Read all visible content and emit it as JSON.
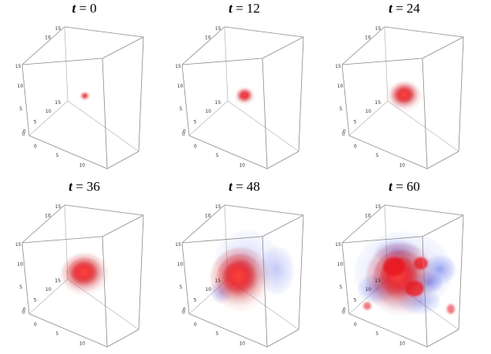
{
  "figure": {
    "panels": [
      {
        "var": "t",
        "rest": " = 0",
        "stage": 0
      },
      {
        "var": "t",
        "rest": " = 12",
        "stage": 1
      },
      {
        "var": "t",
        "rest": " = 24",
        "stage": 2
      },
      {
        "var": "t",
        "rest": " = 36",
        "stage": 3
      },
      {
        "var": "t",
        "rest": " = 48",
        "stage": 4
      },
      {
        "var": "t",
        "rest": " = 60",
        "stage": 5
      }
    ],
    "axis_ticks": {
      "vertical": [
        "15",
        "10",
        "5",
        "0"
      ],
      "left_depth": [
        "0",
        "5",
        "10",
        "15"
      ],
      "top_depth": [
        "10",
        "15"
      ],
      "front_x": [
        "0",
        "5",
        "10",
        "15"
      ]
    },
    "colors": {
      "positive_blob": "#e8131b",
      "negative_blob": "#2d43e0",
      "box_edge": "#8a8a8a"
    }
  }
}
